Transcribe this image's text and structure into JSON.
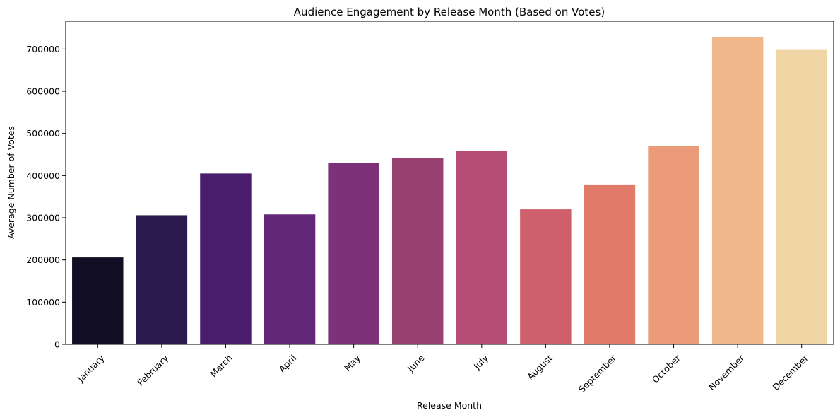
{
  "chart_data": {
    "type": "bar",
    "title": "Audience Engagement by Release Month (Based on Votes)",
    "xlabel": "Release Month",
    "ylabel": "Average Number of Votes",
    "categories": [
      "January",
      "February",
      "March",
      "April",
      "May",
      "June",
      "July",
      "August",
      "September",
      "October",
      "November",
      "December"
    ],
    "values": [
      206000,
      306000,
      405000,
      308000,
      430000,
      441000,
      459000,
      320000,
      379000,
      471000,
      729000,
      698000
    ],
    "colors": [
      "#120f24",
      "#2a1a4d",
      "#491d6c",
      "#622777",
      "#7c3178",
      "#98406f",
      "#b54d74",
      "#d05f6c",
      "#e27a6a",
      "#eb9a7a",
      "#efb78a",
      "#f0d5a5"
    ],
    "ylim": [
      0,
      766000
    ],
    "yticks": [
      0,
      100000,
      200000,
      300000,
      400000,
      500000,
      600000,
      700000
    ],
    "ytick_labels": [
      "0",
      "100000",
      "200000",
      "300000",
      "400000",
      "500000",
      "600000",
      "700000"
    ],
    "grid": false,
    "legend": false
  }
}
